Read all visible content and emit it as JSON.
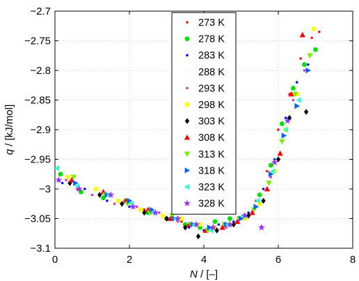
{
  "chart_data": {
    "type": "scatter",
    "xlabel": {
      "var": "N",
      "unit": " / [–]"
    },
    "ylabel": {
      "var": "q",
      "unit": " / [kJ/mol]"
    },
    "xlim": [
      0,
      8
    ],
    "ylim": [
      -3.1,
      -2.7
    ],
    "xticks": [
      0,
      2,
      4,
      6,
      8
    ],
    "yticks": [
      -2.7,
      -2.75,
      -2.8,
      -2.85,
      -2.9,
      -2.95,
      -3,
      -3.05,
      -3.1
    ],
    "xtick_labels": [
      "0",
      "2",
      "4",
      "6",
      "8"
    ],
    "ytick_labels": [
      "−2.7",
      "−2.75",
      "−2.8",
      "−2.85",
      "−2.9",
      "−2.95",
      "−3",
      "−3.05",
      "−3.1"
    ],
    "grid": true,
    "legend_position": "top-center",
    "series": [
      {
        "name": "273 K",
        "color": "#ff0000",
        "marker": "dot",
        "x": [
          0.1,
          0.6,
          1.2,
          1.8,
          2.4,
          2.9,
          3.4,
          3.8,
          4.2,
          4.6,
          5.0,
          5.4,
          5.7,
          6.0,
          6.3,
          6.6,
          6.9,
          7.1
        ],
        "y": [
          -2.985,
          -3.0,
          -3.01,
          -3.025,
          -3.035,
          -3.045,
          -3.055,
          -3.06,
          -3.065,
          -3.06,
          -3.05,
          -3.02,
          -2.97,
          -2.9,
          -2.84,
          -2.78,
          -2.745,
          -2.735
        ]
      },
      {
        "name": "278 K",
        "color": "#00dd00",
        "marker": "circle",
        "x": [
          0.15,
          0.7,
          1.3,
          1.9,
          2.5,
          3.0,
          3.5,
          3.9,
          4.3,
          4.7,
          5.1,
          5.5,
          5.8,
          6.1,
          6.4,
          6.7,
          7.0
        ],
        "y": [
          -2.975,
          -3.005,
          -3.015,
          -3.02,
          -3.04,
          -3.05,
          -3.06,
          -3.065,
          -3.055,
          -3.05,
          -3.045,
          -3.01,
          -2.96,
          -2.89,
          -2.83,
          -2.79,
          -2.765
        ]
      },
      {
        "name": "283 K",
        "color": "#0000ff",
        "marker": "dot",
        "x": [
          0.2,
          0.8,
          1.4,
          2.0,
          2.6,
          3.1,
          3.6,
          4.0,
          4.4,
          4.8,
          5.2,
          5.6,
          5.9,
          6.2,
          6.5,
          6.8
        ],
        "y": [
          -2.99,
          -3.0,
          -3.02,
          -3.03,
          -3.04,
          -3.05,
          -3.065,
          -3.07,
          -3.06,
          -3.055,
          -3.04,
          -3.0,
          -2.95,
          -2.88,
          -2.82,
          -2.79
        ]
      },
      {
        "name": "288 K",
        "color": "#f7f7d6",
        "marker": "dot",
        "x": [
          0.25,
          0.9,
          1.5,
          2.1,
          2.7,
          3.2,
          3.7,
          4.1,
          4.5,
          4.9,
          5.3,
          5.7,
          6.0,
          6.3,
          6.6
        ],
        "y": [
          -2.98,
          -3.01,
          -3.02,
          -3.03,
          -3.045,
          -3.05,
          -3.06,
          -3.065,
          -3.06,
          -3.05,
          -3.035,
          -2.99,
          -2.93,
          -2.87,
          -2.81
        ]
      },
      {
        "name": "293 K",
        "color": "#cc33cc",
        "marker": "dot",
        "x": [
          0.3,
          1.0,
          1.6,
          2.2,
          2.8,
          3.3,
          3.8,
          4.2,
          4.6,
          5.0,
          5.4,
          5.8,
          6.1,
          6.4,
          6.7
        ],
        "y": [
          -2.985,
          -3.01,
          -3.025,
          -3.03,
          -3.04,
          -3.055,
          -3.06,
          -3.07,
          -3.065,
          -3.05,
          -3.03,
          -2.98,
          -2.92,
          -2.85,
          -2.8
        ]
      },
      {
        "name": "298 K",
        "color": "#ffff00",
        "marker": "square",
        "x": [
          0.35,
          1.1,
          1.7,
          2.3,
          2.9,
          3.4,
          3.9,
          4.3,
          4.7,
          5.1,
          5.5,
          5.9,
          6.2,
          6.5,
          6.95
        ],
        "y": [
          -2.98,
          -3.0,
          -3.02,
          -3.035,
          -3.045,
          -3.05,
          -3.06,
          -3.065,
          -3.06,
          -3.05,
          -3.025,
          -2.97,
          -2.9,
          -2.84,
          -2.73
        ]
      },
      {
        "name": "303 K",
        "color": "#000000",
        "marker": "diamond",
        "x": [
          0.4,
          1.2,
          1.8,
          2.4,
          3.0,
          3.5,
          3.85,
          4.35,
          4.8,
          5.2,
          5.6,
          6.0,
          6.3,
          6.75
        ],
        "y": [
          -2.99,
          -3.01,
          -3.025,
          -3.04,
          -3.05,
          -3.065,
          -3.08,
          -3.07,
          -3.06,
          -3.045,
          -3.02,
          -2.95,
          -2.88,
          -2.87
        ]
      },
      {
        "name": "308 K",
        "color": "#ff0000",
        "marker": "triangle-up",
        "x": [
          0.45,
          1.3,
          1.9,
          2.5,
          3.1,
          3.6,
          4.05,
          4.5,
          4.9,
          5.3,
          5.7,
          6.05,
          6.35,
          6.65
        ],
        "y": [
          -2.985,
          -3.005,
          -3.02,
          -3.035,
          -3.05,
          -3.06,
          -3.07,
          -3.065,
          -3.055,
          -3.04,
          -3.0,
          -2.94,
          -2.84,
          -2.74
        ]
      },
      {
        "name": "313 K",
        "color": "#77ee00",
        "marker": "triangle-down",
        "x": [
          0.5,
          1.35,
          1.95,
          2.55,
          3.15,
          3.65,
          4.1,
          4.55,
          4.95,
          5.35,
          5.75,
          6.1,
          6.45,
          6.85
        ],
        "y": [
          -2.98,
          -3.01,
          -3.025,
          -3.04,
          -3.045,
          -3.06,
          -3.07,
          -3.06,
          -3.05,
          -3.035,
          -2.99,
          -2.92,
          -2.84,
          -2.775
        ]
      },
      {
        "name": "318 K",
        "color": "#0066ff",
        "marker": "triangle-right",
        "x": [
          0.55,
          1.4,
          2.0,
          2.6,
          3.2,
          3.7,
          4.15,
          4.6,
          5.0,
          5.4,
          5.8,
          6.15,
          6.5,
          6.8
        ],
        "y": [
          -2.99,
          -3.01,
          -3.02,
          -3.035,
          -3.05,
          -3.06,
          -3.065,
          -3.06,
          -3.05,
          -3.03,
          -2.975,
          -2.91,
          -2.86,
          -2.8
        ]
      },
      {
        "name": "323 K",
        "color": "#33ffcc",
        "marker": "triangle-left",
        "x": [
          0.05,
          0.6,
          1.45,
          2.05,
          2.65,
          3.25,
          3.75,
          4.2,
          4.65,
          5.05,
          5.45,
          5.85,
          6.2,
          6.55
        ],
        "y": [
          -2.965,
          -2.995,
          -3.01,
          -3.025,
          -3.04,
          -3.05,
          -3.06,
          -3.07,
          -3.06,
          -3.045,
          -3.02,
          -2.97,
          -2.9,
          -2.85
        ]
      },
      {
        "name": "328 K",
        "color": "#9933ff",
        "marker": "star",
        "x": [
          0.1,
          0.65,
          1.5,
          2.1,
          2.7,
          3.3,
          3.8,
          4.25,
          4.7,
          5.1,
          5.55,
          5.9,
          6.25
        ],
        "y": [
          -2.985,
          -3.0,
          -3.01,
          -3.03,
          -3.04,
          -3.05,
          -3.06,
          -3.065,
          -3.06,
          -3.045,
          -3.065,
          -2.955,
          -2.885
        ]
      }
    ]
  }
}
